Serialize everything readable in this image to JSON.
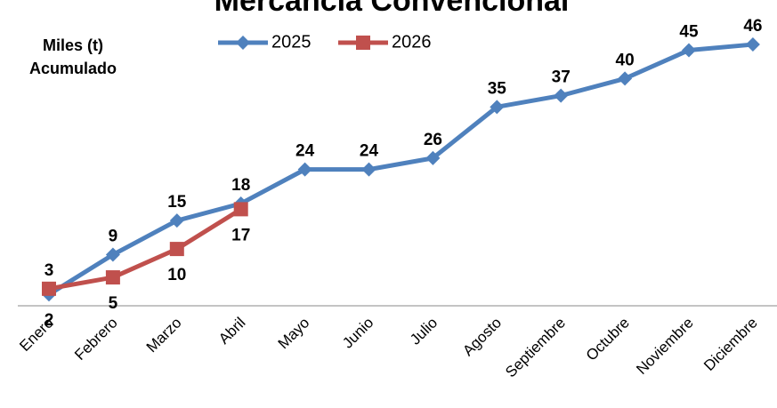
{
  "chart_data": {
    "type": "line",
    "title": "Mercancía Convencional",
    "y_label": [
      "Miles (t)",
      "Acumulado"
    ],
    "categories": [
      "Enero",
      "Febrero",
      "Marzo",
      "Abril",
      "Mayo",
      "Junio",
      "Julio",
      "Agosto",
      "Septiembre",
      "Octubre",
      "Noviembre",
      "Diciembre"
    ],
    "series": [
      {
        "name": "2025",
        "color": "#4f81bd",
        "label_color": "#1f497d",
        "marker": "diamond",
        "values": [
          2,
          9,
          15,
          18,
          24,
          24,
          26,
          35,
          37,
          40,
          45,
          46
        ]
      },
      {
        "name": "2026",
        "color": "#c0504d",
        "label_color": "#c00000",
        "marker": "square",
        "values": [
          3,
          5,
          10,
          17,
          null,
          null,
          null,
          null,
          null,
          null,
          null,
          null
        ]
      }
    ],
    "ylim": [
      0,
      50
    ],
    "grid": false,
    "legend": "top"
  }
}
